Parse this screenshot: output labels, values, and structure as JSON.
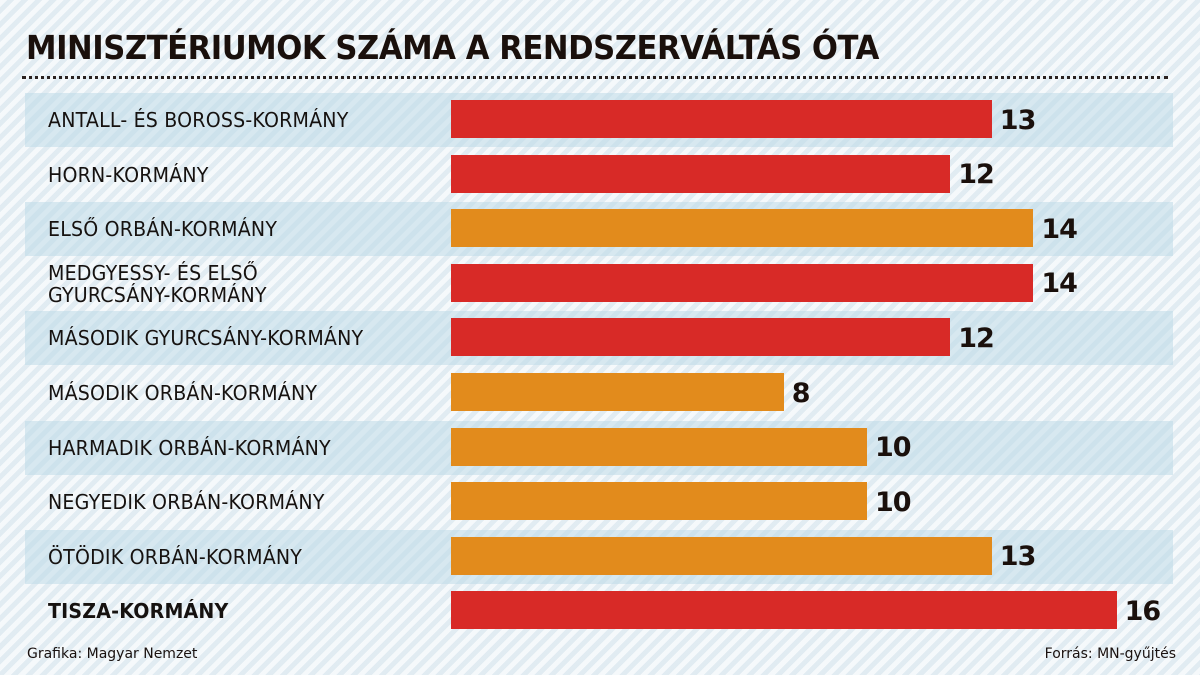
{
  "header": {
    "title": "MINISZTÉRIUMOK SZÁMA A RENDSZERVÁLTÁS ÓTA"
  },
  "colors": {
    "red": "#d82a27",
    "orange": "#e28b1c",
    "band": "#cfe2ec",
    "background": "#e9f1f6",
    "text": "#1a100c"
  },
  "footer": {
    "credit": "Grafika: Magyar Nemzet",
    "source": "Forrás: MN-gyűjtés"
  },
  "chart_data": {
    "type": "bar",
    "orientation": "horizontal",
    "title": "MINISZTÉRIUMOK SZÁMA A RENDSZERVÁLTÁS ÓTA",
    "xlabel": "",
    "ylabel": "",
    "categories": [
      "ANTALL- ÉS BOROSS-KORMÁNY",
      "HORN-KORMÁNY",
      "ELSŐ ORBÁN-KORMÁNY",
      "MEDGYESSY- ÉS ELSŐ GYURCSÁNY-KORMÁNY",
      "MÁSODIK GYURCSÁNY-KORMÁNY",
      "MÁSODIK ORBÁN-KORMÁNY",
      "HARMADIK ORBÁN-KORMÁNY",
      "NEGYEDIK ORBÁN-KORMÁNY",
      "ÖTÖDIK ORBÁN-KORMÁNY",
      "TISZA-KORMÁNY"
    ],
    "values": [
      13,
      12,
      14,
      14,
      12,
      8,
      10,
      10,
      13,
      16
    ],
    "bar_colors": [
      "red",
      "red",
      "orange",
      "red",
      "red",
      "orange",
      "orange",
      "orange",
      "orange",
      "red"
    ],
    "grid": false,
    "legend": null,
    "data_labels": true,
    "xlim": [
      0,
      16
    ]
  },
  "rows": [
    {
      "label": "ANTALL- ÉS BOROSS-KORMÁNY",
      "value": "13"
    },
    {
      "label": "HORN-KORMÁNY",
      "value": "12"
    },
    {
      "label": "ELSŐ ORBÁN-KORMÁNY",
      "value": "14"
    },
    {
      "label": "MEDGYESSY- ÉS ELSŐ GYURCSÁNY-KORMÁNY",
      "value": "14"
    },
    {
      "label": "MÁSODIK GYURCSÁNY-KORMÁNY",
      "value": "12"
    },
    {
      "label": "MÁSODIK ORBÁN-KORMÁNY",
      "value": "8"
    },
    {
      "label": "HARMADIK ORBÁN-KORMÁNY",
      "value": "10"
    },
    {
      "label": "NEGYEDIK ORBÁN-KORMÁNY",
      "value": "10"
    },
    {
      "label": "ÖTÖDIK ORBÁN-KORMÁNY",
      "value": "13"
    },
    {
      "label": "TISZA-KORMÁNY",
      "value": "16"
    }
  ]
}
